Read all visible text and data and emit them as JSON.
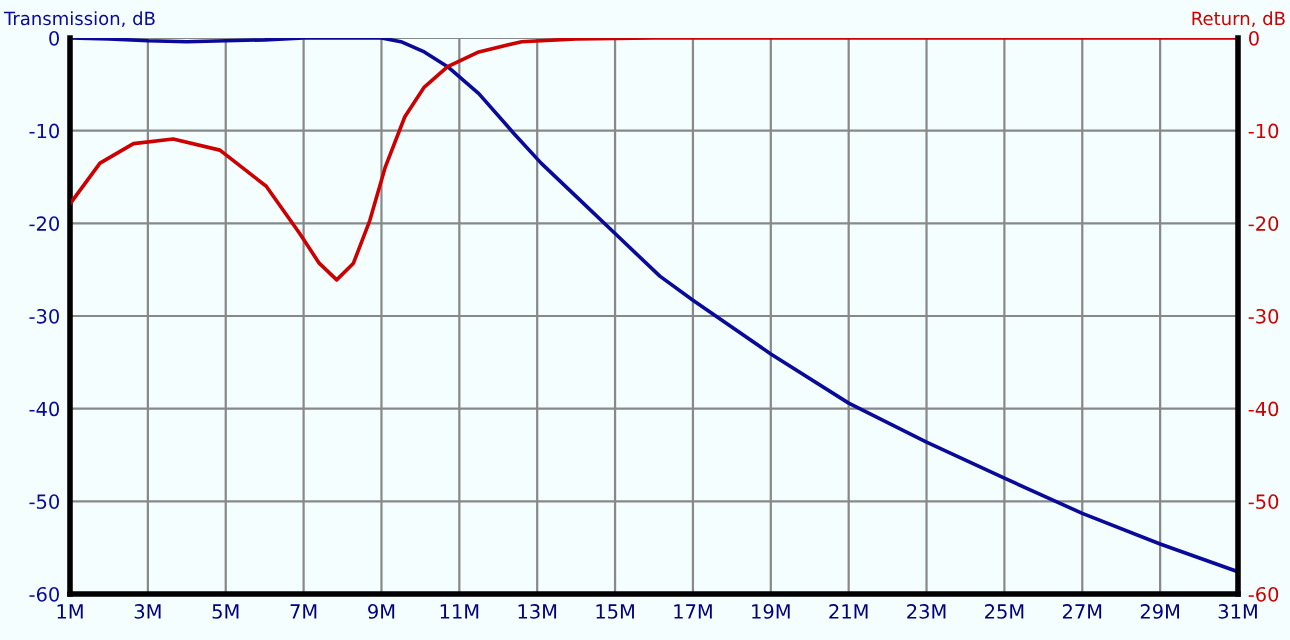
{
  "chart_data": {
    "type": "line",
    "ylabel": "Transmission, dB",
    "y2label": "Return, dB",
    "xlim": [
      1,
      31
    ],
    "xticks": [
      {
        "value": 1,
        "label": "1M"
      },
      {
        "value": 3,
        "label": "3M"
      },
      {
        "value": 5,
        "label": "5M"
      },
      {
        "value": 7,
        "label": "7M"
      },
      {
        "value": 9,
        "label": "9M"
      },
      {
        "value": 11,
        "label": "11M"
      },
      {
        "value": 13,
        "label": "13M"
      },
      {
        "value": 15,
        "label": "15M"
      },
      {
        "value": 17,
        "label": "17M"
      },
      {
        "value": 19,
        "label": "19M"
      },
      {
        "value": 21,
        "label": "21M"
      },
      {
        "value": 23,
        "label": "23M"
      },
      {
        "value": 25,
        "label": "25M"
      },
      {
        "value": 27,
        "label": "27M"
      },
      {
        "value": 29,
        "label": "29M"
      },
      {
        "value": 31,
        "label": "31M"
      }
    ],
    "ylim": [
      -60,
      0
    ],
    "yticks": [
      0,
      -10,
      -20,
      -30,
      -40,
      -50,
      -60
    ],
    "y2lim": [
      -60,
      0
    ],
    "y2ticks": [
      0,
      -10,
      -20,
      -30,
      -40,
      -50,
      -60
    ],
    "grid": true,
    "marker": "none",
    "line_style": "solid",
    "series": [
      {
        "color": "#0a0a9a",
        "x": [
          1,
          2,
          3,
          4,
          5,
          6,
          7,
          8,
          9,
          9.5,
          10.1,
          10.7,
          11.5,
          12.4,
          13.1,
          14.1,
          15,
          16.15,
          17,
          19,
          21,
          23,
          25,
          27,
          29,
          31
        ],
        "values": [
          0,
          -0.1,
          -0.3,
          -0.4,
          -0.3,
          -0.2,
          0,
          0,
          0,
          -0.4,
          -1.5,
          -3.1,
          -6,
          -10.3,
          -13.5,
          -17.5,
          -21.1,
          -25.7,
          -28.3,
          -34.1,
          -39.4,
          -43.6,
          -47.5,
          -51.3,
          -54.6,
          -57.6
        ]
      },
      {
        "color": "#cc0000",
        "axis": "y2",
        "x": [
          1,
          1.77,
          2.63,
          3.65,
          4.85,
          6.04,
          6.9,
          7.4,
          7.85,
          8.28,
          8.7,
          9.1,
          9.6,
          10.1,
          10.7,
          11.5,
          12.6,
          14,
          16,
          31
        ],
        "values": [
          -17.9,
          -13.5,
          -11.4,
          -10.9,
          -12.1,
          -16,
          -21.1,
          -24.3,
          -26.1,
          -24.3,
          -19.7,
          -13.9,
          -8.5,
          -5.3,
          -3.1,
          -1.5,
          -0.4,
          -0.1,
          0,
          0
        ]
      }
    ]
  }
}
